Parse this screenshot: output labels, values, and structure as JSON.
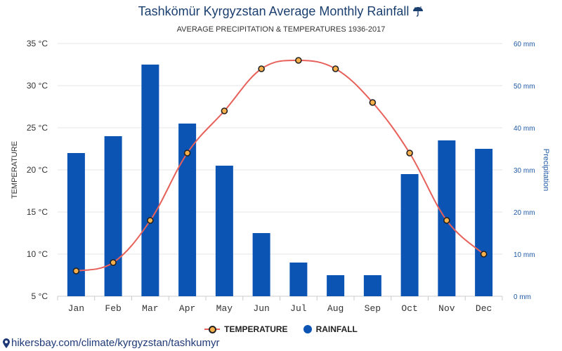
{
  "title": "Tashkömür Kyrgyzstan Average Monthly Rainfall",
  "title_icon": "umbrella-icon",
  "subtitle": "AVERAGE PRECIPITATION & TEMPERATURES 1936-2017",
  "left_axis_title": "TEMPERATURE",
  "right_axis_title": "Precipitation",
  "legend": {
    "temperature_label": "TEMPERATURE",
    "rainfall_label": "RAINFALL"
  },
  "source_text": "hikersbay.com/climate/kyrgyzstan/tashkumyr",
  "colors": {
    "title": "#1a3f6f",
    "bar": "#0b54b4",
    "line": "#e8605a",
    "marker_fill": "#f9b04a",
    "right_axis": "#1f5aa6"
  },
  "chart_data": {
    "type": "bar+line",
    "categories": [
      "Jan",
      "Feb",
      "Mar",
      "Apr",
      "May",
      "Jun",
      "Jul",
      "Aug",
      "Sep",
      "Oct",
      "Nov",
      "Dec"
    ],
    "series": [
      {
        "name": "RAINFALL",
        "type": "bar",
        "axis": "right",
        "unit": "mm",
        "values": [
          34,
          38,
          55,
          41,
          31,
          15,
          8,
          5,
          5,
          29,
          37,
          35
        ]
      },
      {
        "name": "TEMPERATURE",
        "type": "line",
        "axis": "left",
        "unit": "°C",
        "values": [
          8,
          9,
          14,
          22,
          27,
          32,
          33,
          32,
          28,
          22,
          14,
          10
        ]
      }
    ],
    "left_axis": {
      "min": 5,
      "max": 35,
      "step": 5,
      "suffix": " °C",
      "tick_labels": [
        "5 °C",
        "10 °C",
        "15 °C",
        "20 °C",
        "25 °C",
        "30 °C",
        "35 °C"
      ]
    },
    "right_axis": {
      "min": 0,
      "max": 60,
      "step": 10,
      "suffix": " mm",
      "tick_labels": [
        "0 mm",
        "10 mm",
        "20 mm",
        "30 mm",
        "40 mm",
        "50 mm",
        "60 mm"
      ]
    },
    "grid": true,
    "legend_position": "bottom-center"
  }
}
